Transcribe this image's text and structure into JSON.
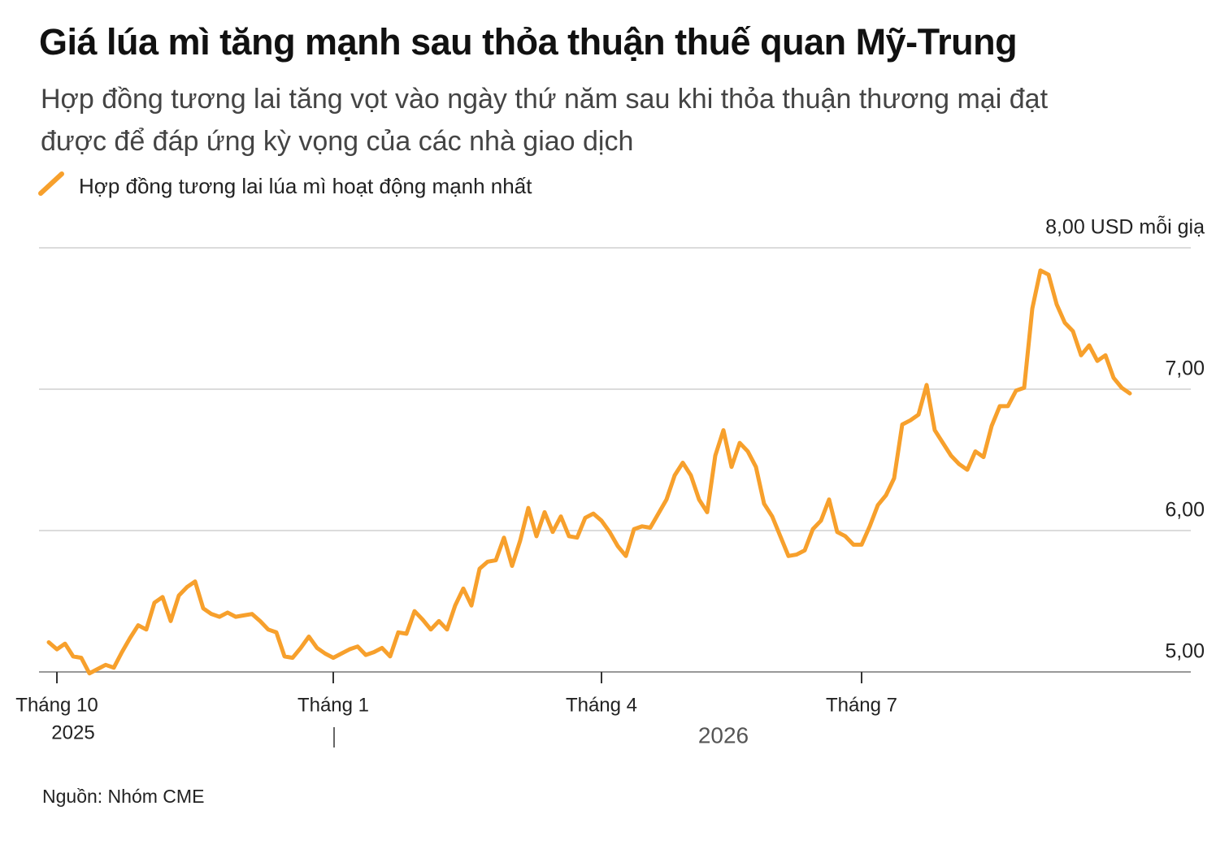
{
  "chart_data": {
    "type": "line",
    "title": "Giá lúa mì tăng mạnh sau thỏa thuận thuế quan Mỹ-Trung",
    "subtitle": "Hợp đồng tương lai tăng vọt vào ngày thứ năm sau khi thỏa thuận thương mại đạt được để đáp ứng kỳ vọng của các nhà giao dịch",
    "source": "Nguồn: Nhóm CME",
    "categories": [
      null,
      "Tháng 10",
      null,
      null,
      null,
      null,
      null,
      null,
      null,
      null,
      null,
      null,
      null,
      null,
      null,
      null,
      null,
      null,
      null,
      null,
      null,
      null,
      null,
      null,
      null,
      null,
      null,
      null,
      null,
      null,
      null,
      null,
      null,
      null,
      null,
      "Tháng 1",
      null,
      null,
      null,
      null,
      null,
      null,
      null,
      null,
      null,
      null,
      null,
      null,
      null,
      null,
      null,
      null,
      null,
      null,
      null,
      null,
      null,
      null,
      null,
      null,
      null,
      null,
      null,
      null,
      null,
      null,
      null,
      null,
      "Tháng 4",
      null,
      null,
      null,
      null,
      null,
      null,
      null,
      null,
      null,
      null,
      null,
      null,
      null,
      null,
      null,
      null,
      null,
      null,
      null,
      null,
      null,
      null,
      null,
      null,
      null,
      null,
      null,
      null,
      null,
      null,
      null,
      "Tháng 7",
      null,
      null,
      null,
      null,
      null,
      null,
      null,
      null,
      null,
      null,
      null,
      null,
      null,
      null,
      null,
      null,
      null,
      null,
      null,
      null,
      null,
      null,
      null,
      null,
      null,
      null,
      null,
      null,
      null,
      null,
      null,
      null,
      null
    ],
    "year_labels": [
      "2025",
      "2026"
    ],
    "series": [
      {
        "name": "Hợp đồng tương lai lúa mì hoạt động mạnh nhất",
        "color": "#f7a02c",
        "values": [
          5.21,
          5.16,
          5.2,
          5.11,
          5.1,
          4.99,
          5.02,
          5.05,
          5.03,
          5.14,
          5.24,
          5.33,
          5.3,
          5.49,
          5.53,
          5.36,
          5.54,
          5.6,
          5.64,
          5.45,
          5.41,
          5.39,
          5.42,
          5.39,
          5.4,
          5.41,
          5.36,
          5.3,
          5.28,
          5.11,
          5.1,
          5.17,
          5.25,
          5.17,
          5.13,
          5.1,
          5.13,
          5.16,
          5.18,
          5.12,
          5.14,
          5.17,
          5.11,
          5.28,
          5.27,
          5.43,
          5.37,
          5.3,
          5.36,
          5.3,
          5.47,
          5.59,
          5.47,
          5.73,
          5.78,
          5.79,
          5.95,
          5.75,
          5.93,
          6.16,
          5.96,
          6.13,
          5.99,
          6.1,
          5.96,
          5.95,
          6.09,
          6.12,
          6.07,
          5.99,
          5.89,
          5.82,
          6.01,
          6.03,
          6.02,
          6.12,
          6.22,
          6.39,
          6.48,
          6.39,
          6.22,
          6.13,
          6.53,
          6.71,
          6.45,
          6.62,
          6.56,
          6.45,
          6.19,
          6.1,
          5.96,
          5.82,
          5.83,
          5.86,
          6.01,
          6.07,
          6.22,
          5.99,
          5.96,
          5.9,
          5.9,
          6.03,
          6.18,
          6.25,
          6.37,
          6.75,
          6.78,
          6.82,
          7.03,
          6.71,
          6.62,
          6.53,
          6.47,
          6.43,
          6.56,
          6.52,
          6.74,
          6.88,
          6.88,
          6.99,
          7.01,
          7.57,
          7.84,
          7.81,
          7.6,
          7.47,
          7.41,
          7.24,
          7.31,
          7.2,
          7.24,
          7.08,
          7.01,
          6.97
        ]
      }
    ],
    "ylim": [
      5,
      8
    ],
    "yticks": [
      {
        "value": 5,
        "label": "5,00"
      },
      {
        "value": 6,
        "label": "6,00"
      },
      {
        "value": 7,
        "label": "7,00"
      },
      {
        "value": 8,
        "label": "8,00 USD mỗi giạ"
      }
    ],
    "grid": true
  }
}
